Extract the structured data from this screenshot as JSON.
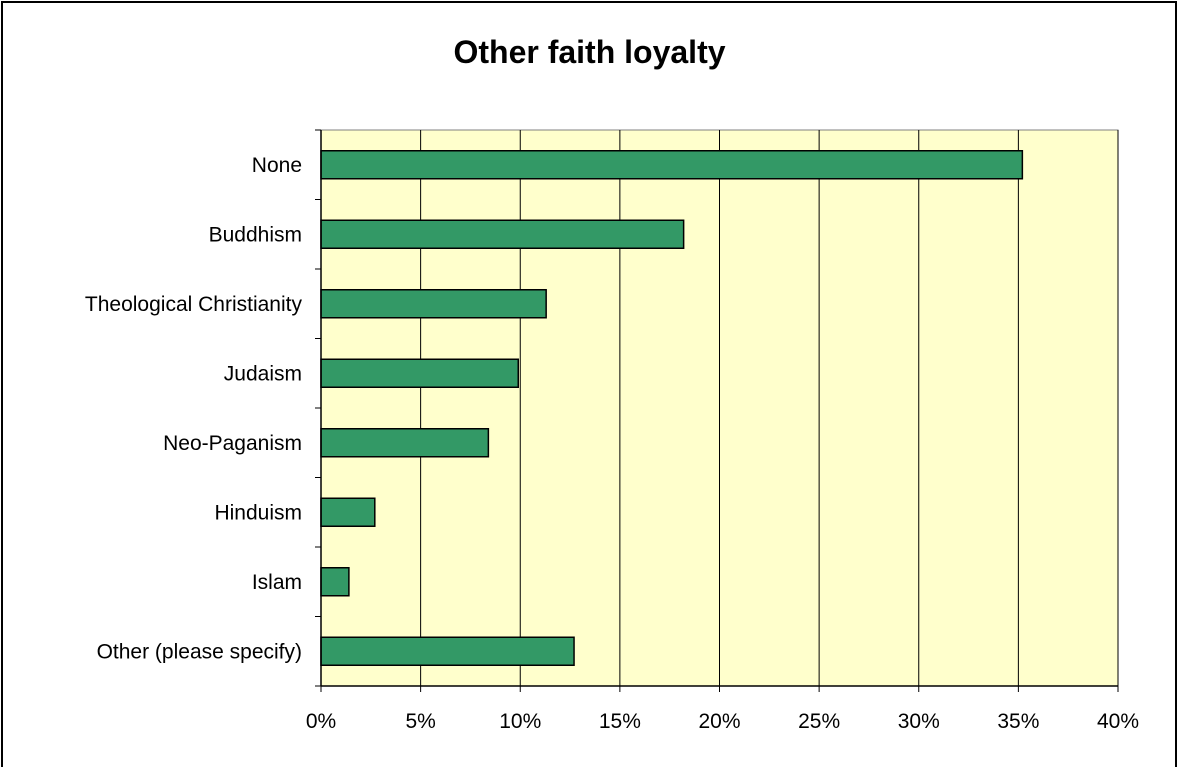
{
  "chart_data": {
    "type": "bar",
    "orientation": "horizontal",
    "title": "Other faith loyalty",
    "xlabel": "",
    "ylabel": "",
    "categories": [
      "None",
      "Buddhism",
      "Theological Christianity",
      "Judaism",
      "Neo-Paganism",
      "Hinduism",
      "Islam",
      "Other (please specify)"
    ],
    "values": [
      35.2,
      18.2,
      11.3,
      9.9,
      8.4,
      2.7,
      1.4,
      12.7
    ],
    "value_unit": "%",
    "xlim": [
      0,
      40
    ],
    "x_ticks": [
      "0%",
      "5%",
      "10%",
      "15%",
      "20%",
      "25%",
      "30%",
      "35%",
      "40%"
    ],
    "grid": true,
    "legend": "none",
    "colors": {
      "bar_fill": "#339966",
      "bar_stroke": "#000000",
      "plot_background": "#FFFFCC",
      "gridline": "#000000"
    }
  }
}
